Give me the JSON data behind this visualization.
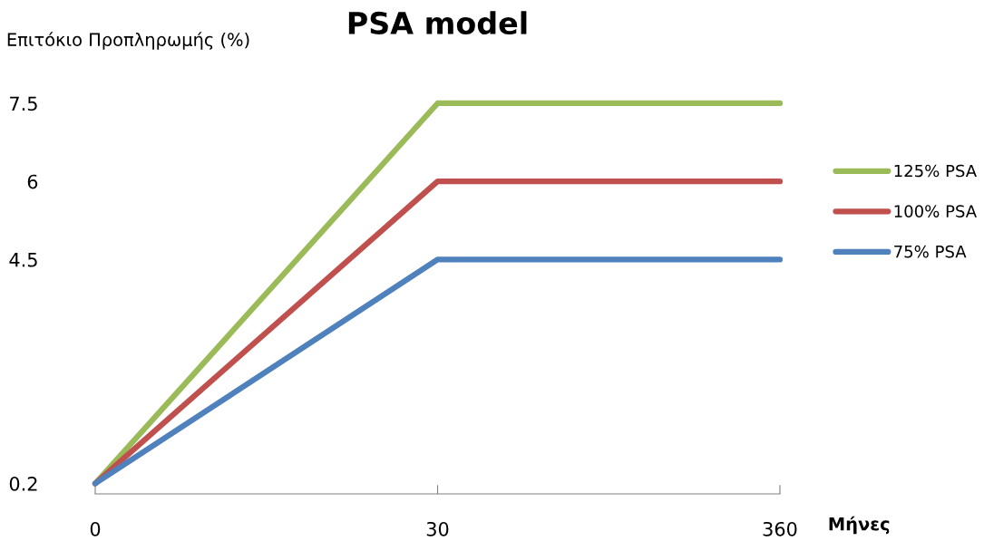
{
  "chart_data": {
    "type": "line",
    "title": "PSA model",
    "ylabel": "Επιτόκιο Προπληρωμής (%)",
    "xlabel": "Μήνες",
    "categories": [
      "0",
      "30",
      "360"
    ],
    "series": [
      {
        "name": "125% PSA",
        "color": "#9bbb59",
        "values": [
          0.2,
          7.5,
          7.5
        ]
      },
      {
        "name": "100% PSA",
        "color": "#c0504d",
        "values": [
          0.2,
          6,
          6
        ]
      },
      {
        "name": "75% PSA",
        "color": "#4f81bd",
        "values": [
          0.2,
          4.5,
          4.5
        ]
      }
    ],
    "ylim": [
      0,
      7.5
    ],
    "yticks": [
      0.2,
      4.5,
      6,
      7.5
    ],
    "grid": false,
    "legend": "right",
    "marker": "none",
    "line_style": "solid"
  }
}
